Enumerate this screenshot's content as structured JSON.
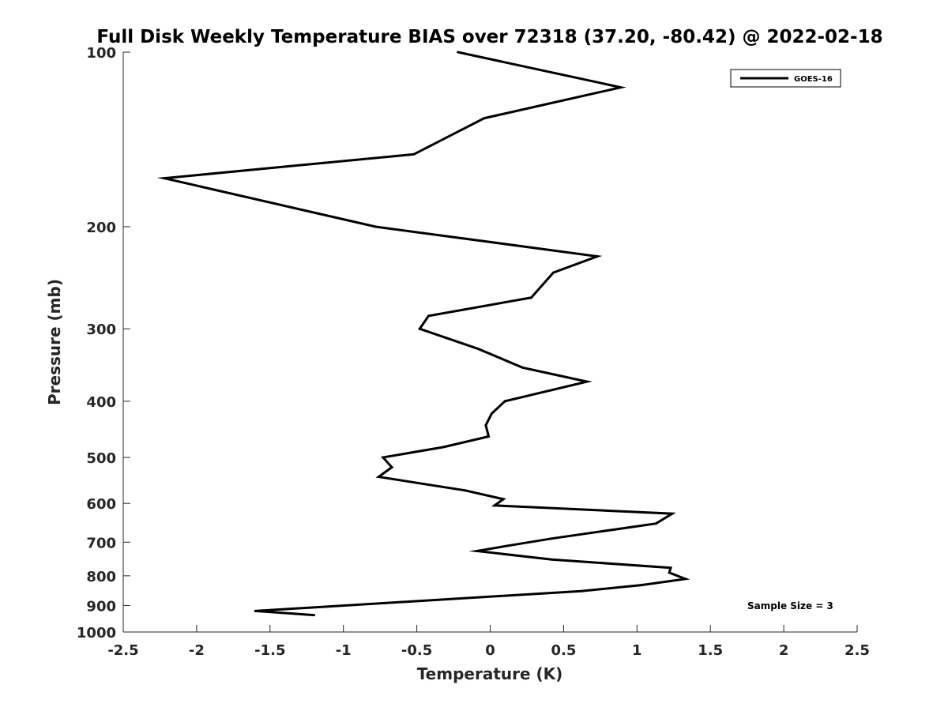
{
  "chart_data": {
    "type": "line",
    "title": "Full Disk Weekly Temperature BIAS over 72318 (37.20, -80.42) @ 2022-02-18",
    "xlabel": "Temperature (K)",
    "ylabel": "Pressure (mb)",
    "xlim": [
      -2.5,
      2.5
    ],
    "ylim": [
      100,
      1000
    ],
    "y_scale": "log",
    "y_reversed": true,
    "grid": false,
    "legend_position": "top-right",
    "x_ticks": [
      -2.5,
      -2,
      -1.5,
      -1,
      -0.5,
      0,
      0.5,
      1,
      1.5,
      2,
      2.5
    ],
    "x_tick_labels": [
      "-2.5",
      "-2",
      "-1.5",
      "-1",
      "-0.5",
      "0",
      "0.5",
      "1",
      "1.5",
      "2",
      "2.5"
    ],
    "y_ticks": [
      100,
      200,
      300,
      400,
      500,
      600,
      700,
      800,
      900,
      1000
    ],
    "y_tick_labels": [
      "100",
      "200",
      "300",
      "400",
      "500",
      "600",
      "700",
      "800",
      "900",
      "1000"
    ],
    "series": [
      {
        "name": "GOES-16",
        "color": "#000000",
        "points": [
          [
            -0.22,
            100
          ],
          [
            0.89,
            115
          ],
          [
            -0.04,
            130
          ],
          [
            -0.52,
            150
          ],
          [
            -2.22,
            165
          ],
          [
            -0.78,
            200
          ],
          [
            0.73,
            225
          ],
          [
            0.43,
            240
          ],
          [
            0.28,
            265
          ],
          [
            -0.42,
            285
          ],
          [
            -0.48,
            300
          ],
          [
            -0.08,
            325
          ],
          [
            0.22,
            350
          ],
          [
            0.66,
            370
          ],
          [
            0.1,
            400
          ],
          [
            0.01,
            420
          ],
          [
            -0.03,
            440
          ],
          [
            -0.01,
            460
          ],
          [
            -0.32,
            480
          ],
          [
            -0.73,
            500
          ],
          [
            -0.67,
            520
          ],
          [
            -0.76,
            540
          ],
          [
            -0.17,
            570
          ],
          [
            0.09,
            590
          ],
          [
            0.03,
            605
          ],
          [
            1.24,
            625
          ],
          [
            1.13,
            650
          ],
          [
            0.42,
            690
          ],
          [
            0.12,
            710
          ],
          [
            -0.09,
            725
          ],
          [
            0.42,
            750
          ],
          [
            1.23,
            775
          ],
          [
            1.22,
            790
          ],
          [
            1.33,
            810
          ],
          [
            1.03,
            830
          ],
          [
            0.62,
            850
          ],
          [
            -1.6,
            920
          ],
          [
            -1.2,
            935
          ]
        ]
      }
    ],
    "annotations": [
      "Sample Size = 3"
    ]
  }
}
